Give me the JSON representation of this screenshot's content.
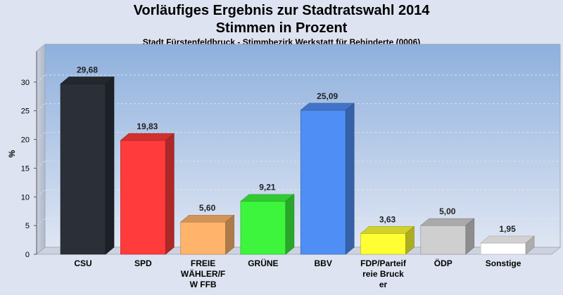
{
  "header": {
    "title": "Vorläufiges Ergebnis zur Stadtratswahl 2014",
    "subtitle": "Stimmen in Prozent",
    "subsubtitle": "Stadt Fürstenfeldbruck - Stimmbezirk Werkstatt für Behinderte (0006)"
  },
  "chart_data": {
    "type": "bar",
    "title": "Vorläufiges Ergebnis zur Stadtratswahl 2014",
    "ylabel": "%",
    "ylim": [
      0,
      35
    ],
    "yticks": [
      0,
      5,
      10,
      15,
      20,
      25,
      30
    ],
    "grid": true,
    "categories": [
      [
        "CSU"
      ],
      [
        "SPD"
      ],
      [
        "FREIE",
        "WÄHLER/F",
        "W FFB"
      ],
      [
        "GRÜNE"
      ],
      [
        "BBV"
      ],
      [
        "FDP/Parteif",
        "reie Bruck",
        "er"
      ],
      [
        "ÖDP"
      ],
      [
        "Sonstige"
      ]
    ],
    "values": [
      29.68,
      19.83,
      5.6,
      9.21,
      25.09,
      3.63,
      5.0,
      1.95
    ],
    "value_labels": [
      "29,68",
      "19,83",
      "5,60",
      "9,21",
      "25,09",
      "3,63",
      "5,00",
      "1,95"
    ],
    "colors": [
      "#2b2f38",
      "#ff3b3b",
      "#ffb36b",
      "#3df53d",
      "#4f8ef5",
      "#ffff33",
      "#cfcfcf",
      "#ffffff"
    ]
  }
}
